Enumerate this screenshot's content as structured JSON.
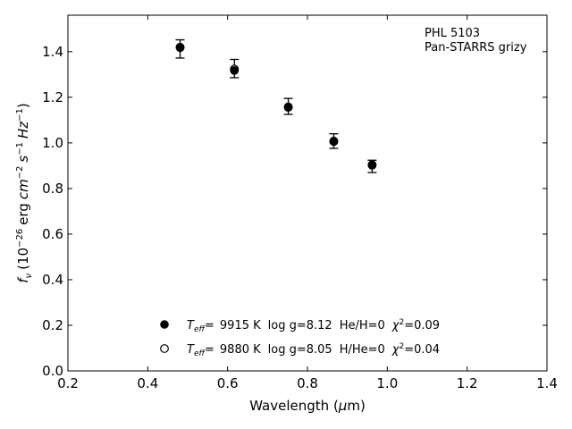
{
  "chart_data": {
    "type": "scatter",
    "title": "",
    "xlabel": "Wavelength (μm)",
    "ylabel": "f_ν (10^-26 erg cm^-2 s^-1 Hz^-1)",
    "xlim": [
      0.2,
      1.4
    ],
    "ylim": [
      0.0,
      1.56
    ],
    "xticks": [
      0.2,
      0.4,
      0.6,
      0.8,
      1.0,
      1.2,
      1.4
    ],
    "yticks": [
      0.0,
      0.2,
      0.4,
      0.6,
      0.8,
      1.0,
      1.2,
      1.4
    ],
    "xtick_labels": [
      "0.2",
      "0.4",
      "0.6",
      "0.8",
      "1.0",
      "1.2",
      "1.4"
    ],
    "ytick_labels": [
      "0.0",
      "0.2",
      "0.4",
      "0.6",
      "0.8",
      "1.0",
      "1.2",
      "1.4"
    ],
    "grid": false,
    "observed": {
      "x": [
        0.481,
        0.617,
        0.752,
        0.866,
        0.962
      ],
      "y": [
        1.412,
        1.326,
        1.16,
        1.008,
        0.897
      ],
      "err": [
        0.04,
        0.04,
        0.035,
        0.032,
        0.027
      ]
    },
    "series": [
      {
        "name": "T_eff= 9915 K log g=8.12 He/H=0 χ²=0.09",
        "marker": "filled",
        "x": [
          0.481,
          0.617,
          0.752,
          0.866,
          0.962
        ],
        "y": [
          1.418,
          1.318,
          1.156,
          1.006,
          0.904
        ]
      },
      {
        "name": "T_eff= 9880 K log g=8.05 H/He=0 χ²=0.04",
        "marker": "open",
        "x": [
          0.481,
          0.617,
          0.752,
          0.866,
          0.962
        ],
        "y": [
          1.42,
          1.324,
          1.158,
          1.008,
          0.902
        ]
      }
    ],
    "annotations": [
      "PHL 5103",
      "Pan-STARRS grizy"
    ],
    "legend_position": "bottom-center"
  },
  "labels": {
    "xlabel_main": "Wavelength (",
    "xlabel_unit": "μ",
    "xlabel_end": "m)",
    "annot_line1": "PHL 5103",
    "annot_line2": "Pan-STARRS grizy",
    "legend1": {
      "t": "T",
      "sub": "eff",
      "eq": "=",
      "temp": "9915 K",
      "logg": "log g=8.12",
      "comp": "He/H=0",
      "chi_sym": "χ",
      "chi_sup": "2",
      "chi_val": "=0.09"
    },
    "legend2": {
      "t": "T",
      "sub": "eff",
      "eq": "=",
      "temp": "9880 K",
      "logg": "log g=8.05",
      "comp": "H/He=0",
      "chi_sym": "χ",
      "chi_sup": "2",
      "chi_val": "=0.04"
    },
    "ylabel": {
      "f": "f",
      "nu": "ν",
      "open": "(10",
      "exp1": "−26",
      "erg": "erg",
      "cm": "cm",
      "exp2": "−2",
      "s": "s",
      "exp3": "−1",
      "hz": "Hz",
      "exp4": "−1",
      "close": ")"
    }
  },
  "colors": {
    "marker": "#000000",
    "axis": "#000000",
    "background": "#ffffff"
  }
}
